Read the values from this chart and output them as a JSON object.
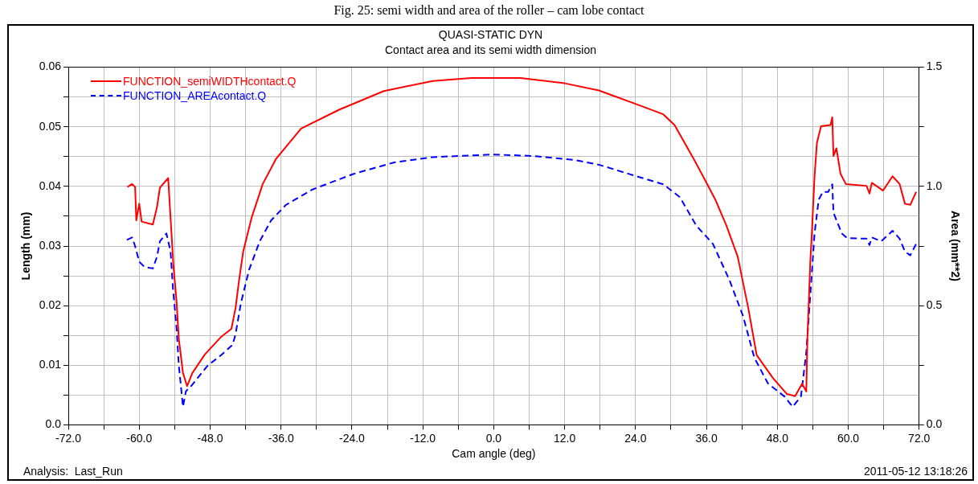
{
  "chart_data": {
    "type": "line",
    "title": "QUASI-STATIC DYN",
    "subtitle": "Contact area and its semi width dimension",
    "xlabel": "Cam angle (deg)",
    "ylabel": "Length (mm)",
    "y2label": "Area (mm**2)",
    "annotations": [
      "Fig. 25: semi width and area of the roller – cam lobe contact",
      "Analysis:  Last_Run",
      "2011-05-12 13:18:26"
    ],
    "xlim": [
      -72,
      72
    ],
    "xticks": [
      {
        "value": -72,
        "label": "-72.0"
      },
      {
        "value": -66,
        "label": null
      },
      {
        "value": -60,
        "label": "-60.0"
      },
      {
        "value": -54,
        "label": null
      },
      {
        "value": -48,
        "label": "-48.0"
      },
      {
        "value": -42,
        "label": null
      },
      {
        "value": -36,
        "label": "-36.0"
      },
      {
        "value": -30,
        "label": null
      },
      {
        "value": -24,
        "label": "-24.0"
      },
      {
        "value": -18,
        "label": null
      },
      {
        "value": -12,
        "label": "-12.0"
      },
      {
        "value": -6,
        "label": null
      },
      {
        "value": 0,
        "label": "0.0"
      },
      {
        "value": 6,
        "label": null
      },
      {
        "value": 12,
        "label": "12.0"
      },
      {
        "value": 18,
        "label": null
      },
      {
        "value": 24,
        "label": "24.0"
      },
      {
        "value": 30,
        "label": null
      },
      {
        "value": 36,
        "label": "36.0"
      },
      {
        "value": 42,
        "label": null
      },
      {
        "value": 48,
        "label": "48.0"
      },
      {
        "value": 54,
        "label": null
      },
      {
        "value": 60,
        "label": "60.0"
      },
      {
        "value": 66,
        "label": null
      },
      {
        "value": 72,
        "label": "72.0"
      }
    ],
    "ylim": [
      0,
      0.06
    ],
    "yticks": [
      {
        "value": 0,
        "label": "0.0"
      },
      {
        "value": 0.005,
        "label": null
      },
      0.01,
      {
        "value": 0.015,
        "label": null
      },
      0.02,
      {
        "value": 0.025,
        "label": null
      },
      0.03,
      {
        "value": 0.035,
        "label": null
      },
      0.04,
      {
        "value": 0.045,
        "label": null
      },
      0.05,
      {
        "value": 0.055,
        "label": null
      },
      0.06
    ],
    "y2lim": [
      0,
      1.5
    ],
    "y2ticks": [
      {
        "value": 0,
        "label": "0.0"
      },
      {
        "value": 0.25,
        "label": null
      },
      0.5,
      {
        "value": 0.75,
        "label": null
      },
      {
        "value": 1,
        "label": "1.0"
      },
      {
        "value": 1.25,
        "label": null
      },
      1.5
    ],
    "grid": true,
    "legend": "top left",
    "marker": "none",
    "series": [
      {
        "name": "FUNCTION_semiWIDTHcontact.Q",
        "color": "#ff0000",
        "line_style": "solid",
        "x": [
          -62.0,
          -61.2,
          -60.7,
          -60.5,
          -60.0,
          -59.6,
          -57.7,
          -57.0,
          -56.5,
          -55.1,
          -54.7,
          -54.2,
          -53.7,
          -53.3,
          -52.6,
          -51.9,
          -51.0,
          -48.9,
          -46.1,
          -44.4,
          -43.7,
          -43.1,
          -42.4,
          -41.0,
          -39.1,
          -36.8,
          -32.6,
          -26.1,
          -18.6,
          -10.3,
          -3.8,
          4.5,
          12.0,
          17.8,
          23.6,
          28.7,
          30.6,
          33.8,
          35.7,
          37.5,
          39.4,
          41.3,
          43.1,
          44.5,
          47.3,
          49.6,
          51.0,
          52.2,
          52.9,
          53.1,
          53.6,
          53.8,
          54.3,
          54.7,
          55.4,
          57.0,
          57.3,
          57.5,
          58.0,
          58.7,
          59.6,
          63.1,
          63.6,
          64.0,
          65.9,
          67.5,
          68.7,
          69.6,
          70.5,
          71.5
        ],
        "values": [
          0.0399,
          0.0404,
          0.0399,
          0.0343,
          0.0371,
          0.0341,
          0.0336,
          0.0365,
          0.0398,
          0.0414,
          0.0347,
          0.0265,
          0.0209,
          0.0144,
          0.0087,
          0.0065,
          0.0087,
          0.0118,
          0.0148,
          0.0161,
          0.0196,
          0.0243,
          0.0291,
          0.0347,
          0.0404,
          0.0447,
          0.0497,
          0.0529,
          0.056,
          0.0577,
          0.0582,
          0.0582,
          0.0573,
          0.0561,
          0.054,
          0.0521,
          0.0503,
          0.0447,
          0.0412,
          0.0378,
          0.0334,
          0.0282,
          0.0195,
          0.0117,
          0.0078,
          0.0052,
          0.0048,
          0.0069,
          0.0056,
          0.0148,
          0.0278,
          0.0313,
          0.0417,
          0.0473,
          0.0501,
          0.0503,
          0.0516,
          0.0451,
          0.0464,
          0.0421,
          0.0404,
          0.0401,
          0.0388,
          0.0406,
          0.0393,
          0.0417,
          0.0404,
          0.0371,
          0.0369,
          0.0391
        ]
      },
      {
        "name": "FUNCTION_AREAcontact.Q",
        "color": "#0000ff",
        "line_style": "dashed",
        "axis": "y2",
        "x": [
          -62.1,
          -61.2,
          -60.7,
          -60.0,
          -59.1,
          -57.7,
          -57.0,
          -56.5,
          -55.4,
          -54.7,
          -54.3,
          -53.7,
          -53.3,
          -52.6,
          -52.1,
          -51.2,
          -48.4,
          -46.1,
          -44.2,
          -43.7,
          -42.8,
          -41.4,
          -39.6,
          -37.7,
          -35.2,
          -30.7,
          -23.8,
          -16.8,
          -10.3,
          -0.1,
          6.4,
          13.4,
          17.8,
          23.6,
          28.7,
          31.5,
          34.3,
          37.1,
          39.9,
          42.2,
          44.1,
          46.4,
          49.2,
          50.6,
          52.0,
          52.9,
          53.7,
          54.3,
          55.0,
          55.7,
          56.6,
          57.3,
          57.5,
          58.9,
          59.8,
          63.1,
          63.6,
          64.0,
          65.6,
          67.5,
          68.7,
          69.6,
          70.5,
          71.5
        ],
        "values": [
          0.776,
          0.786,
          0.749,
          0.684,
          0.662,
          0.656,
          0.705,
          0.77,
          0.803,
          0.727,
          0.575,
          0.412,
          0.249,
          0.076,
          0.141,
          0.163,
          0.249,
          0.293,
          0.336,
          0.38,
          0.51,
          0.651,
          0.77,
          0.857,
          0.922,
          0.987,
          1.052,
          1.101,
          1.123,
          1.134,
          1.128,
          1.112,
          1.091,
          1.047,
          1.009,
          0.955,
          0.835,
          0.759,
          0.607,
          0.456,
          0.282,
          0.174,
          0.119,
          0.076,
          0.119,
          0.304,
          0.586,
          0.803,
          0.944,
          0.977,
          0.977,
          1.009,
          0.89,
          0.803,
          0.783,
          0.781,
          0.754,
          0.786,
          0.77,
          0.814,
          0.781,
          0.727,
          0.711,
          0.759
        ]
      }
    ]
  }
}
